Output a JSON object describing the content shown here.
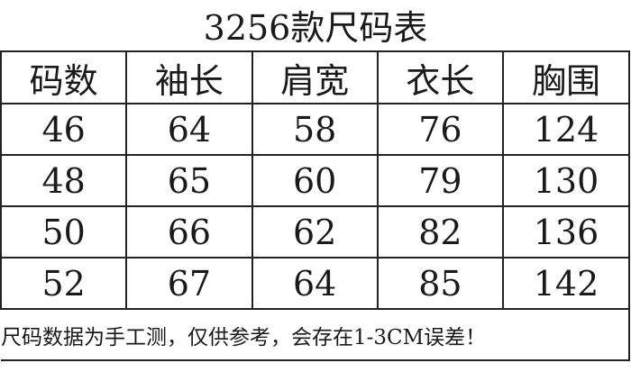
{
  "title": "3256款尺码表",
  "headers": [
    "码数",
    "袖长",
    "肩宽",
    "衣长",
    "胸围"
  ],
  "rows": [
    [
      "46",
      "64",
      "58",
      "76",
      "124"
    ],
    [
      "48",
      "65",
      "60",
      "79",
      "130"
    ],
    [
      "50",
      "66",
      "62",
      "82",
      "136"
    ],
    [
      "52",
      "67",
      "64",
      "85",
      "142"
    ]
  ],
  "note": "尺码数据为手工测，仅供参考，会存在1-3CM误差！"
}
